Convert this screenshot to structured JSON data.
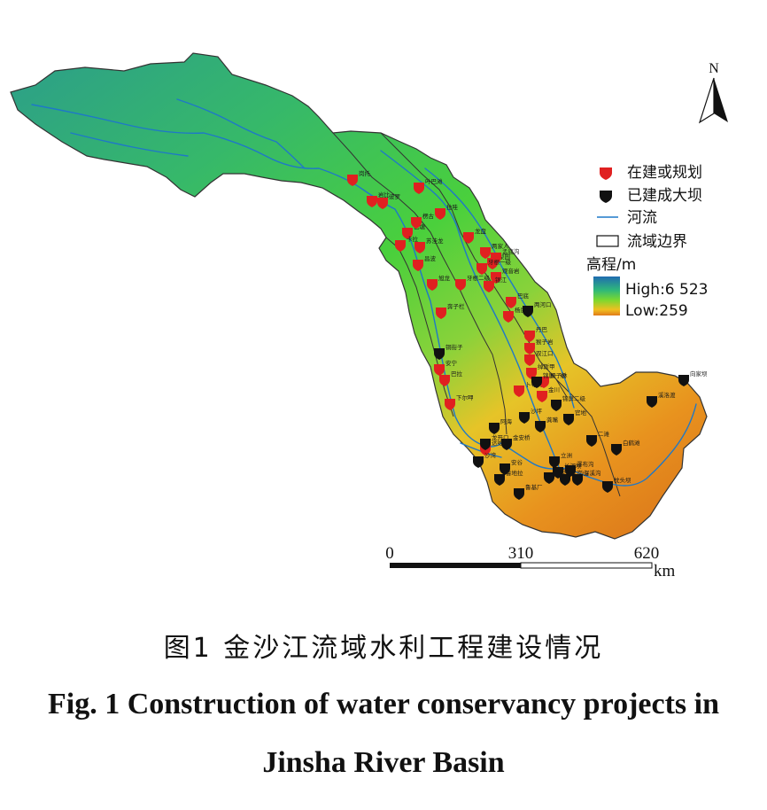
{
  "north": "N",
  "legend": {
    "planned": "在建或规划",
    "built": "已建成大坝",
    "river": "河流",
    "boundary": "流域边界",
    "elevation_title": "高程/m",
    "high": "High:6 523",
    "low": "Low:259"
  },
  "scale": {
    "t0": "0",
    "t1": "310",
    "t2": "620",
    "unit": "km"
  },
  "caption": {
    "cn": "图1   金沙江流域水利工程建设情况",
    "en_line1": "Fig. 1 Construction of water conservancy projects in",
    "en_line2": "Jinsha River Basin"
  },
  "colors": {
    "planned_marker": "#e02020",
    "built_marker": "#111111",
    "river": "#1e78c8",
    "boundary": "#333333",
    "elev_high": "#1f6bb0",
    "elev_mid": "#4cd23a",
    "elev_low": "#e07a1a"
  },
  "dams": {
    "planned": [
      {
        "name": "岗托"
      },
      {
        "name": "岩比"
      },
      {
        "name": "波罗"
      },
      {
        "name": "叶巴滩"
      },
      {
        "name": "拉哇"
      },
      {
        "name": "巴塘"
      },
      {
        "name": "苏洼龙"
      },
      {
        "name": "昌波"
      },
      {
        "name": "旭龙"
      },
      {
        "name": "奔子栏"
      },
      {
        "name": "龙盘"
      },
      {
        "name": "两家人"
      },
      {
        "name": "梨园"
      },
      {
        "name": "观音岩"
      },
      {
        "name": "银江"
      },
      {
        "name": "巴底"
      },
      {
        "name": "丹巴"
      },
      {
        "name": "猴子岩"
      },
      {
        "name": "双江口"
      },
      {
        "name": "金川"
      },
      {
        "name": "安宁"
      },
      {
        "name": "巴拉"
      },
      {
        "name": "下尔呷"
      },
      {
        "name": "达维"
      },
      {
        "name": "卜寺沟"
      },
      {
        "name": "绰斯甲"
      },
      {
        "name": "孟底沟"
      },
      {
        "name": "牙根一级"
      },
      {
        "name": "牙根二级"
      },
      {
        "name": "楞古"
      },
      {
        "name": "卡拉"
      },
      {
        "name": "杨房沟"
      },
      {
        "name": "桐子林"
      }
    ],
    "built": [
      {
        "name": "两河口"
      },
      {
        "name": "锦屏一级"
      },
      {
        "name": "锦屏二级"
      },
      {
        "name": "官地"
      },
      {
        "name": "二滩"
      },
      {
        "name": "阿海"
      },
      {
        "name": "金安桥"
      },
      {
        "name": "鲁地拉"
      },
      {
        "name": "龙开口"
      },
      {
        "name": "乌东德"
      },
      {
        "name": "白鹤滩"
      },
      {
        "name": "溪洛渡"
      },
      {
        "name": "向家坝"
      },
      {
        "name": "鲁基厂"
      },
      {
        "name": "长河坝"
      },
      {
        "name": "大岗山"
      },
      {
        "name": "瀑布沟"
      },
      {
        "name": "深溪沟"
      },
      {
        "name": "枕头坝"
      },
      {
        "name": "沙坪"
      },
      {
        "name": "龚嘴"
      },
      {
        "name": "铜街子"
      },
      {
        "name": "沙湾"
      },
      {
        "name": "安谷"
      },
      {
        "name": "立洲"
      }
    ]
  }
}
